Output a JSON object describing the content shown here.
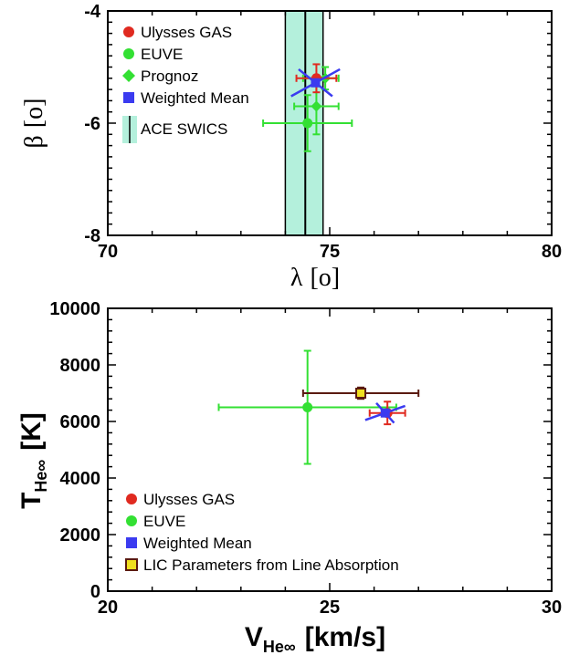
{
  "chart_data": [
    {
      "type": "scatter",
      "xlabel": "λ",
      "xlabel_unit": "[o]",
      "ylabel": "β",
      "ylabel_unit": "[o]",
      "xlim": [
        70,
        80
      ],
      "ylim": [
        -8,
        -4
      ],
      "xticks": [
        "70",
        "75",
        "80"
      ],
      "yticks": [
        "-4",
        "-6",
        "-8"
      ],
      "legend_position": "top-left",
      "band": {
        "name": "ACE SWICS",
        "center": 74.45,
        "low": 74.0,
        "high": 74.85,
        "fill": "#b4f0dc",
        "line": "#000000"
      },
      "series": [
        {
          "name": "Ulysses GAS",
          "color": "#e02a20",
          "marker": "circle",
          "x": 74.7,
          "y": -5.2,
          "xerr": [
            0.45,
            0.45
          ],
          "yerr": [
            0.25,
            0.25
          ]
        },
        {
          "name": "EUVE",
          "color": "#33e033",
          "marker": "circle",
          "x": 74.5,
          "y": -6.0,
          "xerr": [
            1.0,
            1.0
          ],
          "yerr": [
            0.5,
            0.5
          ]
        },
        {
          "name": "Prognoz",
          "color": "#33e033",
          "marker": "diamond",
          "points": [
            {
              "x": 74.7,
              "y": -5.7,
              "xerr": [
                0.5,
                0.5
              ],
              "yerr": [
                0.5,
                0.5
              ]
            },
            {
              "x": 74.9,
              "y": -5.2,
              "xerr": [
                0.5,
                0.3
              ],
              "yerr": [
                0.2,
                0.2
              ]
            }
          ]
        },
        {
          "name": "Weighted Mean",
          "color": "#3b3bf0",
          "marker": "square",
          "x": 74.68,
          "y": -5.28,
          "ellipse_axes": [
            [
              0.55,
              0.24
            ],
            [
              0.38,
              -0.24
            ]
          ]
        }
      ]
    },
    {
      "type": "scatter",
      "xlabel": "V",
      "xlabel_sub": "He∞",
      "xlabel_unit": "[km/s]",
      "ylabel": "T",
      "ylabel_sub": "He∞",
      "ylabel_unit": "[K]",
      "xlim": [
        20,
        30
      ],
      "ylim": [
        0,
        10000
      ],
      "xticks": [
        "20",
        "25",
        "30"
      ],
      "yticks": [
        "0",
        "2000",
        "4000",
        "6000",
        "8000",
        "10000"
      ],
      "legend_position": "bottom-left",
      "series": [
        {
          "name": "Ulysses GAS",
          "color": "#e02a20",
          "marker": "circle",
          "x": 26.3,
          "y": 6300,
          "xerr": [
            0.4,
            0.4
          ],
          "yerr": [
            400,
            400
          ]
        },
        {
          "name": "EUVE",
          "color": "#33e033",
          "marker": "circle",
          "x": 24.5,
          "y": 6500,
          "xerr": [
            2.0,
            2.0
          ],
          "yerr": [
            2000,
            2000
          ]
        },
        {
          "name": "Weighted Mean",
          "color": "#3b3bf0",
          "marker": "square",
          "x": 26.25,
          "y": 6300,
          "ellipse_axes": [
            [
              0.45,
              250
            ],
            [
              -0.2,
              350
            ]
          ]
        },
        {
          "name": "LIC Parameters from Line Absorption",
          "color": "#f0e020",
          "edge": "#5a1a10",
          "marker": "square",
          "x": 25.7,
          "y": 7000,
          "xerr": [
            1.3,
            1.3
          ],
          "yerr": [
            200,
            200
          ]
        }
      ]
    }
  ]
}
